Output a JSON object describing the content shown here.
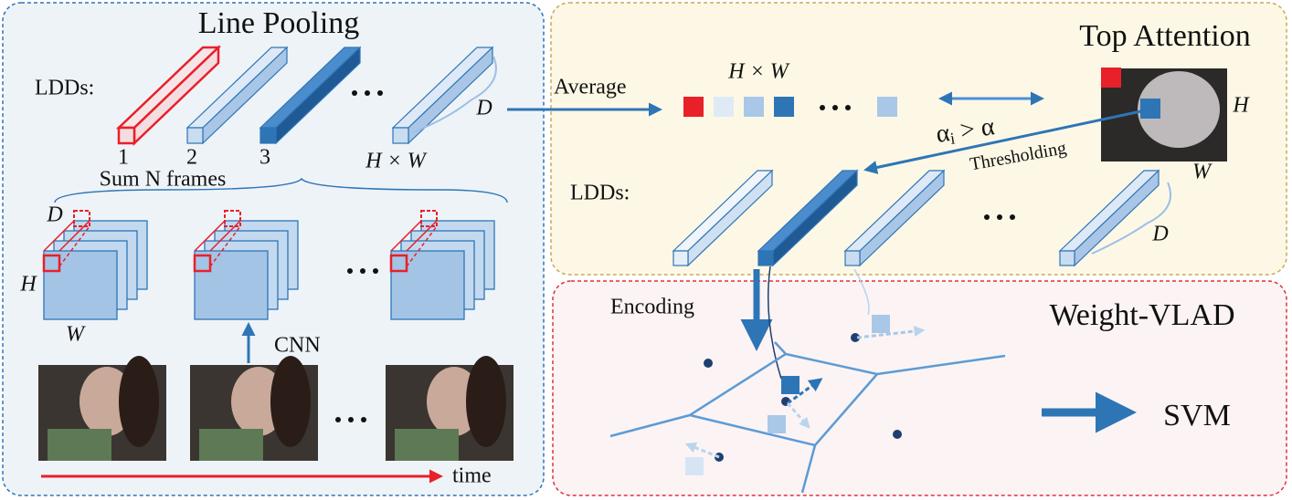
{
  "line_pooling": {
    "title": "Line Pooling",
    "ldds_label": "LDDs:",
    "ldd_labels": [
      "1",
      "2",
      "3",
      "H × W"
    ],
    "depth_label": "D",
    "sum_label": "Sum N frames",
    "stack_depth": "D",
    "stack_height": "H",
    "stack_width": "W",
    "cnn_label": "CNN",
    "time_label": "time"
  },
  "top_attention": {
    "title": "Top Attention",
    "average_label": "Average",
    "map_label": "H × W",
    "image_height": "H",
    "image_width": "W",
    "threshold_expr": {
      "base": "α",
      "sub": "i",
      "rest": " > α"
    },
    "thresholding_label": "Thresholding",
    "ldds_label": "LDDs:",
    "depth_label": "D"
  },
  "weight_vlad": {
    "title": "Weight-VLAD",
    "encoding_label": "Encoding",
    "classifier_label": "SVM"
  }
}
